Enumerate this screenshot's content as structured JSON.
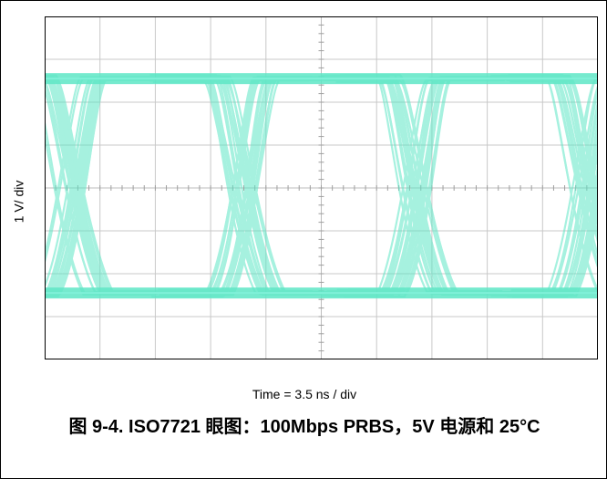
{
  "chart_data": {
    "type": "eye-diagram",
    "ylabel": "1 V/ div",
    "xlabel": "Time = 3.5 ns / div",
    "caption": "图 9-4. ISO7721 眼图：100Mbps PRBS，5V 电源和 25°C",
    "grid": {
      "x_divisions": 10,
      "y_divisions": 8,
      "visible": true
    },
    "trace_color": "#5ee6c6",
    "grid_color": "#c8c8c8",
    "signal": {
      "high_level_div": 1.45,
      "low_level_div": 6.45,
      "crossings_div": [
        0.45,
        3.55,
        6.65,
        9.75
      ],
      "transition_width_div": 0.9
    }
  }
}
